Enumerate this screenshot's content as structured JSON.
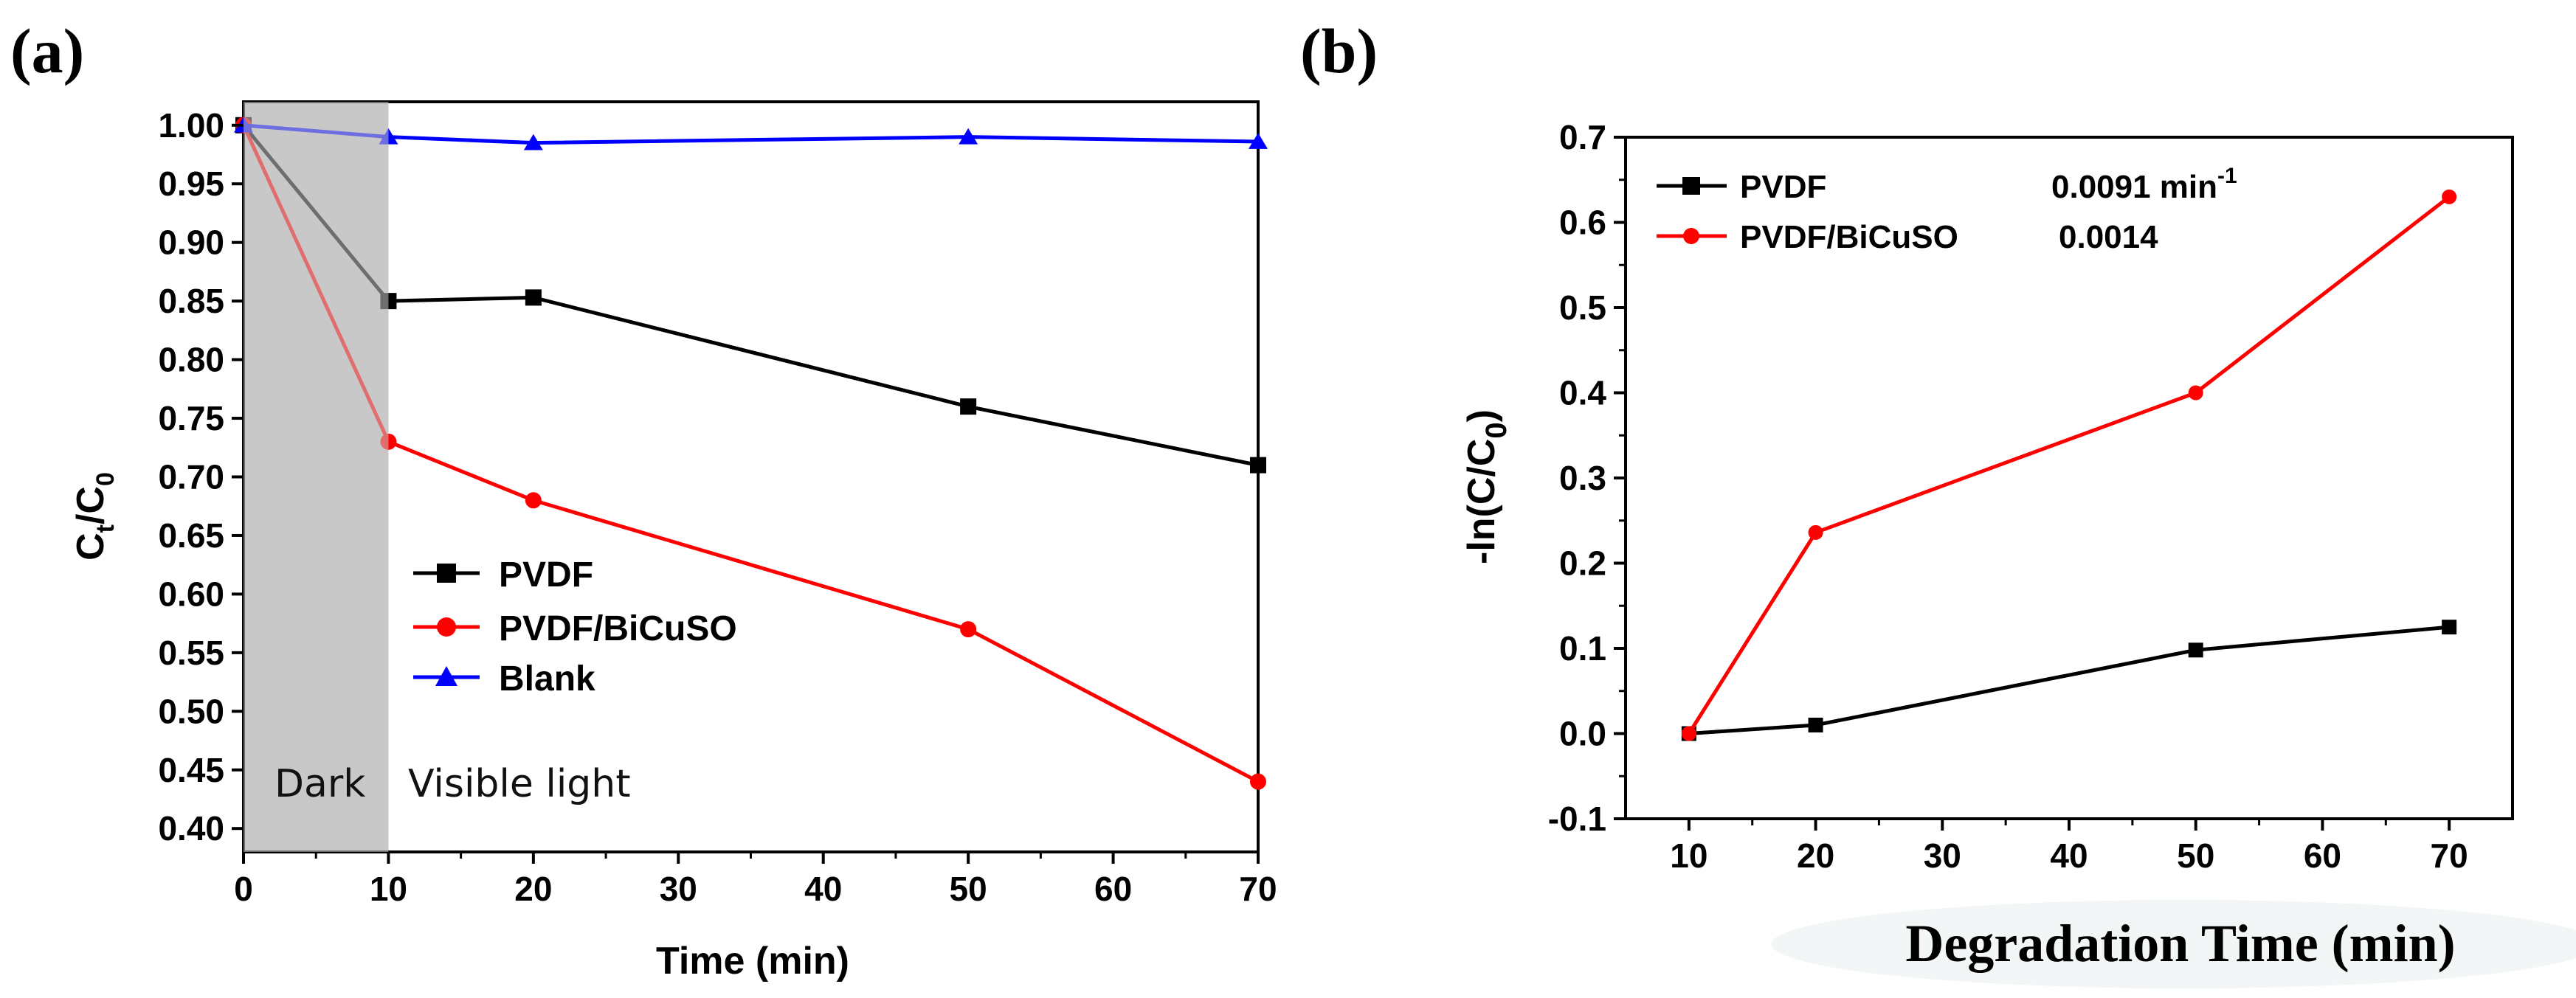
{
  "panels": [
    {
      "label": "(a)",
      "chart_data": {
        "type": "line",
        "xlabel": "Time (min)",
        "ylabel_main": "C",
        "ylabel_sub1": "t",
        "ylabel_mid": "/C",
        "ylabel_sub2": "0",
        "xlim": [
          0,
          70
        ],
        "ylim": [
          0.38,
          1.02
        ],
        "xticks": [
          0,
          10,
          20,
          30,
          40,
          50,
          60,
          70
        ],
        "yticks": [
          0.4,
          0.45,
          0.5,
          0.55,
          0.6,
          0.65,
          0.7,
          0.75,
          0.8,
          0.85,
          0.9,
          0.95,
          1.0
        ],
        "yticks_labels": [
          "0.40",
          "0.45",
          "0.50",
          "0.55",
          "0.60",
          "0.65",
          "0.70",
          "0.75",
          "0.80",
          "0.85",
          "0.90",
          "0.95",
          "1.00"
        ],
        "shaded_region": {
          "from": 0,
          "to": 10,
          "color": "#c8c8c8"
        },
        "region_labels": [
          "Dark",
          "Visible light"
        ],
        "legend_position": "center",
        "series": [
          {
            "name": "PVDF",
            "color": "#000000",
            "marker": "square",
            "x": [
              0,
              10,
              20,
              50,
              70
            ],
            "y": [
              1.0,
              0.85,
              0.853,
              0.76,
              0.71
            ]
          },
          {
            "name": "PVDF/BiCuSO",
            "color": "#ff0000",
            "marker": "circle",
            "x": [
              0,
              10,
              20,
              50,
              70
            ],
            "y": [
              1.0,
              0.73,
              0.68,
              0.57,
              0.44
            ]
          },
          {
            "name": "Blank",
            "color": "#0000ff",
            "marker": "triangle",
            "x": [
              0,
              10,
              20,
              50,
              70
            ],
            "y": [
              1.0,
              0.99,
              0.985,
              0.99,
              0.986
            ]
          }
        ]
      }
    },
    {
      "label": "(b)",
      "chart_data": {
        "type": "line",
        "xlabel": "Degradation Time (min)",
        "ylabel_main": "-ln(C/C",
        "ylabel_sub": "0",
        "ylabel_end": ")",
        "xlim": [
          5,
          75
        ],
        "ylim": [
          -0.1,
          0.7
        ],
        "xticks": [
          10,
          20,
          30,
          40,
          50,
          60,
          70
        ],
        "yticks": [
          -0.1,
          0.0,
          0.1,
          0.2,
          0.3,
          0.4,
          0.5,
          0.6,
          0.7
        ],
        "yticks_labels": [
          "-0.1",
          "0.0",
          "0.1",
          "0.2",
          "0.3",
          "0.4",
          "0.5",
          "0.6",
          "0.7"
        ],
        "legend_position": "top-left",
        "series": [
          {
            "name": "PVDF",
            "rate": "0.0091 min",
            "rate_sup": "-1",
            "color": "#000000",
            "marker": "square",
            "x": [
              10,
              20,
              50,
              70
            ],
            "y": [
              0.0,
              0.01,
              0.098,
              0.125
            ]
          },
          {
            "name": "PVDF/BiCuSO",
            "rate": "0.0014",
            "rate_sup": "",
            "color": "#ff0000",
            "marker": "circle",
            "x": [
              10,
              20,
              50,
              70
            ],
            "y": [
              0.0,
              0.236,
              0.4,
              0.63
            ]
          }
        ]
      }
    }
  ]
}
